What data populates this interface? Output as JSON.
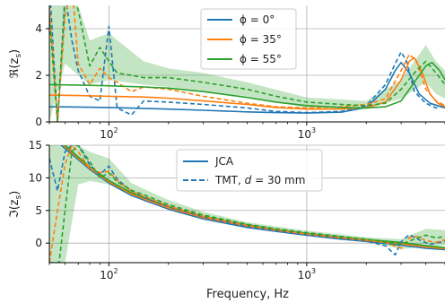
{
  "chart_data": [
    {
      "type": "line",
      "xscale": "log",
      "xlim": [
        50,
        5000
      ],
      "ylim": [
        0,
        5
      ],
      "ylabel": "ℜ(z_s)",
      "ylabel_main": "ℜ(z",
      "ylabel_sub": "s",
      "ylabel_close": ")",
      "yticks": [
        0,
        2,
        4
      ],
      "xticks": [
        {
          "value": 100,
          "label": "10",
          "exp": "2"
        },
        {
          "value": 1000,
          "label": "10",
          "exp": "3"
        }
      ],
      "grid": true,
      "legend_position": "top-center",
      "legend": [
        {
          "label": "ϕ = 0°",
          "color": "#1f77b4"
        },
        {
          "label": "ϕ = 35°",
          "color": "#ff7f0e"
        },
        {
          "label": "ϕ = 55°",
          "color": "#2ca02c"
        }
      ],
      "series": [
        {
          "name": "ϕ = 0°",
          "style": "solid",
          "color": "#1f77b4",
          "x": [
            50,
            70,
            100,
            150,
            200,
            300,
            500,
            700,
            1000,
            1500,
            2000,
            2500,
            2800,
            3000,
            3300,
            3700,
            4200,
            5000
          ],
          "y": [
            0.65,
            0.64,
            0.62,
            0.58,
            0.55,
            0.5,
            0.43,
            0.4,
            0.38,
            0.42,
            0.62,
            1.4,
            2.2,
            2.55,
            2.1,
            1.2,
            0.8,
            0.6
          ]
        },
        {
          "style": "dashed",
          "color": "#1f77b4",
          "x": [
            50,
            55,
            60,
            65,
            70,
            80,
            90,
            100,
            110,
            130,
            150,
            200,
            300,
            500,
            700,
            1000,
            1500,
            2000,
            2500,
            2800,
            3000,
            3200,
            3500,
            4000,
            4500,
            5000
          ],
          "y": [
            6,
            0,
            5.5,
            3.5,
            2.2,
            1.1,
            0.9,
            4.1,
            0.6,
            0.3,
            0.9,
            0.85,
            0.75,
            0.6,
            0.45,
            0.4,
            0.45,
            0.7,
            1.6,
            2.5,
            3.0,
            2.6,
            1.3,
            0.8,
            0.6,
            0.7
          ]
        },
        {
          "name": "ϕ = 35°",
          "style": "solid",
          "color": "#ff7f0e",
          "x": [
            50,
            70,
            100,
            150,
            200,
            300,
            500,
            700,
            1000,
            1500,
            2000,
            2500,
            3000,
            3300,
            3500,
            3800,
            4200,
            4600,
            5000
          ],
          "y": [
            1.15,
            1.13,
            1.1,
            1.07,
            1.02,
            0.9,
            0.75,
            0.62,
            0.55,
            0.55,
            0.62,
            0.85,
            1.8,
            2.6,
            2.75,
            2.2,
            1.2,
            0.8,
            0.65
          ]
        },
        {
          "style": "dashed",
          "color": "#ff7f0e",
          "x": [
            50,
            55,
            60,
            65,
            70,
            80,
            90,
            100,
            110,
            130,
            150,
            200,
            300,
            500,
            700,
            1000,
            1500,
            2000,
            2500,
            3000,
            3300,
            3600,
            4000,
            4500,
            5000
          ],
          "y": [
            5,
            0,
            4.5,
            6,
            2.5,
            1.6,
            2.3,
            1.9,
            1.7,
            1.3,
            1.5,
            1.4,
            1.1,
            0.8,
            0.65,
            0.6,
            0.65,
            0.75,
            1.0,
            2.2,
            2.9,
            2.6,
            1.4,
            0.9,
            0.7
          ]
        },
        {
          "name": "ϕ = 55°",
          "style": "solid",
          "color": "#2ca02c",
          "x": [
            50,
            70,
            100,
            150,
            200,
            300,
            500,
            700,
            1000,
            1500,
            2000,
            2500,
            3000,
            3500,
            4000,
            4300,
            4700,
            5000
          ],
          "y": [
            1.6,
            1.58,
            1.55,
            1.5,
            1.45,
            1.3,
            1.05,
            0.85,
            0.7,
            0.62,
            0.6,
            0.65,
            0.9,
            1.7,
            2.4,
            2.55,
            2.2,
            1.8
          ]
        },
        {
          "style": "dashed",
          "color": "#2ca02c",
          "x": [
            50,
            55,
            60,
            65,
            70,
            80,
            90,
            100,
            110,
            130,
            150,
            200,
            300,
            500,
            700,
            1000,
            1500,
            2000,
            2500,
            3000,
            3500,
            4000,
            4300,
            4700,
            5000
          ],
          "y": [
            4.5,
            0,
            5.2,
            5.5,
            4.8,
            2.4,
            3.2,
            2.6,
            2.1,
            2.0,
            1.9,
            1.9,
            1.7,
            1.4,
            1.1,
            0.85,
            0.75,
            0.7,
            0.8,
            1.4,
            2.1,
            2.6,
            2.3,
            1.9,
            1.6
          ]
        }
      ],
      "uncertainty_bands": [
        {
          "color": "#2ca02c",
          "x": [
            50,
            60,
            70,
            80,
            100,
            150,
            200,
            300,
            500,
            1000,
            2000,
            3000,
            4000,
            4500,
            5000
          ],
          "low": [
            0,
            2.5,
            2.0,
            1.6,
            1.8,
            1.6,
            1.5,
            1.3,
            1.1,
            0.6,
            0.55,
            1.0,
            1.7,
            1.2,
            1.0
          ],
          "high": [
            5,
            5,
            5,
            3.5,
            3.8,
            2.6,
            2.3,
            2.1,
            1.7,
            1.05,
            0.9,
            1.8,
            3.3,
            2.6,
            2.2
          ]
        }
      ]
    },
    {
      "type": "line",
      "xscale": "log",
      "xlim": [
        50,
        5000
      ],
      "ylim": [
        -3,
        15
      ],
      "xlabel": "Frequency, Hz",
      "ylabel": "ℑ(z_s)",
      "ylabel_main": "ℑ(z",
      "ylabel_sub": "s",
      "ylabel_close": ")",
      "yticks": [
        0,
        5,
        10,
        15
      ],
      "xticks": [
        {
          "value": 100,
          "label": "10",
          "exp": "2"
        },
        {
          "value": 1000,
          "label": "10",
          "exp": "3"
        }
      ],
      "grid": true,
      "legend_position": "top-center",
      "legend": [
        {
          "label": "JCA",
          "style": "solid",
          "color": "#1f77b4"
        },
        {
          "label": "TMT, d = 30 mm",
          "style": "dashed",
          "color": "#1f77b4"
        }
      ],
      "legend_text": {
        "jca": "JCA",
        "tmt_prefix": "TMT, ",
        "tmt_d": "d",
        "tmt_suffix": " = 30 mm"
      },
      "series": [
        {
          "name": "JCA",
          "style": "solid",
          "color": "#1f77b4",
          "x": [
            50,
            60,
            70,
            80,
            100,
            130,
            150,
            200,
            300,
            500,
            700,
            1000,
            1500,
            2000,
            3000,
            4000,
            5000
          ],
          "y": [
            16.5,
            14.5,
            12.8,
            11.3,
            9.2,
            7.3,
            6.6,
            5.2,
            3.7,
            2.4,
            1.8,
            1.2,
            0.6,
            0.25,
            -0.3,
            -0.8,
            -1.0
          ]
        },
        {
          "style": "solid",
          "color": "#ff7f0e",
          "x": [
            50,
            60,
            70,
            80,
            100,
            130,
            150,
            200,
            300,
            500,
            700,
            1000,
            1500,
            2000,
            3000,
            4000,
            5000
          ],
          "y": [
            16.8,
            14.8,
            13.0,
            11.5,
            9.4,
            7.5,
            6.8,
            5.4,
            3.9,
            2.6,
            1.95,
            1.35,
            0.75,
            0.4,
            -0.1,
            -0.6,
            -0.85
          ]
        },
        {
          "style": "solid",
          "color": "#2ca02c",
          "x": [
            50,
            60,
            70,
            80,
            100,
            130,
            150,
            200,
            300,
            500,
            700,
            1000,
            1500,
            2000,
            3000,
            4000,
            5000
          ],
          "y": [
            17,
            15,
            13.2,
            11.7,
            9.6,
            7.7,
            7.0,
            5.6,
            4.1,
            2.8,
            2.1,
            1.5,
            0.9,
            0.55,
            0.1,
            -0.4,
            -0.7
          ]
        },
        {
          "name": "TMT, d = 30 mm",
          "style": "dashed",
          "color": "#1f77b4",
          "x": [
            50,
            55,
            60,
            65,
            70,
            80,
            90,
            100,
            110,
            130,
            150,
            200,
            300,
            500,
            700,
            1000,
            1500,
            2000,
            2500,
            2800,
            3000,
            3300,
            3700,
            4200,
            5000
          ],
          "y": [
            13,
            8,
            14,
            15,
            15,
            12,
            10.5,
            11.8,
            9.8,
            8,
            7,
            5.6,
            4,
            2.6,
            1.9,
            1.3,
            0.7,
            0.3,
            -0.4,
            -1.8,
            0.2,
            1.3,
            0.5,
            -0.2,
            0.3
          ]
        },
        {
          "style": "dashed",
          "color": "#ff7f0e",
          "x": [
            50,
            55,
            60,
            65,
            70,
            80,
            90,
            100,
            110,
            130,
            150,
            200,
            300,
            500,
            700,
            1000,
            1500,
            2000,
            2500,
            3000,
            3300,
            3600,
            4000,
            4500,
            5000
          ],
          "y": [
            -3,
            5,
            12,
            15,
            14,
            11.5,
            10.8,
            11,
            9.6,
            7.9,
            7.2,
            5.7,
            4.1,
            2.7,
            2.0,
            1.4,
            0.8,
            0.45,
            0.1,
            -0.8,
            0.8,
            1.0,
            0.4,
            0.1,
            0.5
          ]
        },
        {
          "style": "dashed",
          "color": "#2ca02c",
          "x": [
            50,
            53,
            56,
            60,
            65,
            70,
            80,
            90,
            100,
            110,
            130,
            150,
            200,
            300,
            500,
            700,
            1000,
            1500,
            2000,
            3000,
            3500,
            4000,
            4500,
            5000
          ],
          "y": [
            -3,
            -3,
            -3,
            5,
            14,
            15,
            12.5,
            10,
            10.8,
            9.4,
            8.1,
            7.4,
            5.9,
            4.3,
            2.9,
            2.2,
            1.6,
            1.0,
            0.6,
            -0.2,
            0.6,
            1.2,
            0.8,
            1.0
          ]
        }
      ],
      "uncertainty_bands": [
        {
          "color": "#2ca02c",
          "x": [
            50,
            60,
            70,
            80,
            100,
            130,
            150,
            200,
            300,
            500,
            1000,
            2000,
            3000,
            4000,
            5000
          ],
          "low": [
            -3,
            -3,
            9,
            9.5,
            9,
            7.2,
            6.5,
            5.2,
            3.8,
            2.5,
            1.2,
            0.2,
            -0.9,
            -0.6,
            -0.4
          ],
          "high": [
            15,
            15,
            15,
            14,
            13,
            9.2,
            8.3,
            6.6,
            4.8,
            3.2,
            1.9,
            0.9,
            0.6,
            2.2,
            2.0
          ]
        }
      ]
    }
  ]
}
